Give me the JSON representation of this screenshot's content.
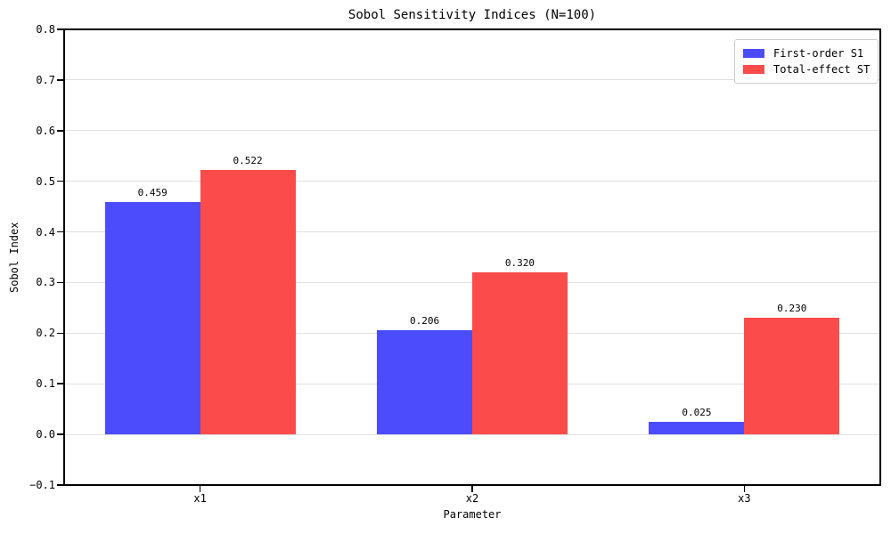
{
  "chart_data": {
    "type": "bar",
    "title": "Sobol Sensitivity Indices (N=100)",
    "xlabel": "Parameter",
    "ylabel": "Sobol Index",
    "categories": [
      "x1",
      "x2",
      "x3"
    ],
    "series": [
      {
        "name": "First-order S1",
        "color": "#4c4cfc",
        "values": [
          0.459,
          0.206,
          0.025
        ],
        "value_labels": [
          "0.459",
          "0.206",
          "0.025"
        ]
      },
      {
        "name": "Total-effect ST",
        "color": "#fc4b4b",
        "values": [
          0.522,
          0.32,
          0.23
        ],
        "value_labels": [
          "0.522",
          "0.320",
          "0.230"
        ]
      }
    ],
    "ylim": [
      -0.1,
      0.8
    ],
    "yticks": [
      -0.1,
      0.0,
      0.1,
      0.2,
      0.3,
      0.4,
      0.5,
      0.6,
      0.7,
      0.8
    ],
    "ytick_labels": [
      "−0.1",
      "0.0",
      "0.1",
      "0.2",
      "0.3",
      "0.4",
      "0.5",
      "0.6",
      "0.7",
      "0.8"
    ],
    "bar_width": 0.35,
    "grid": true,
    "gridline_color": "#e0e0e0",
    "legend_position": "upper right"
  }
}
